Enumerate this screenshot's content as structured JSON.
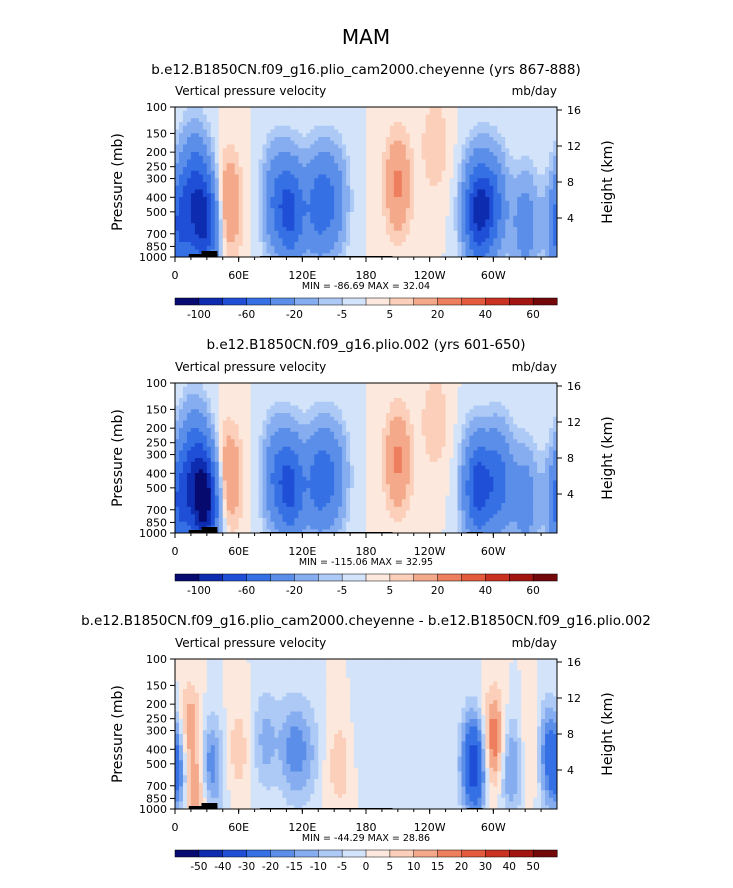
{
  "figure": {
    "season_title": "MAM"
  },
  "chart_data": [
    {
      "type": "heatmap",
      "title": "b.e12.B1850CN.f09_g16.plio_cam2000.cheyenne (yrs 867-888)",
      "left_string": "Vertical pressure velocity",
      "right_string": "mb/day",
      "ylabel": "Pressure (mb)",
      "ylabel_right": "Height (km)",
      "x_ticks": [
        "0",
        "60E",
        "120E",
        "180",
        "120W",
        "60W"
      ],
      "y_ticks": [
        "100",
        "150",
        "200",
        "250",
        "300",
        "400",
        "500",
        "700",
        "850",
        "1000"
      ],
      "y_ticks_right": [
        "16",
        "12",
        "8",
        "4"
      ],
      "stats": "MIN = -86.69   MAX =  32.04",
      "min": -86.69,
      "max": 32.04,
      "colorbar_levels": [
        -120,
        -100,
        -80,
        -60,
        -40,
        -20,
        -10,
        -5,
        0,
        5,
        10,
        20,
        30,
        40,
        50,
        60,
        70
      ],
      "colorbar_labels": [
        "-100",
        "-60",
        "-20",
        "-5",
        "5",
        "20",
        "40",
        "60"
      ],
      "features": [
        {
          "lon": 5,
          "p": 620,
          "w": -60
        },
        {
          "lon": 18,
          "p": 300,
          "w": -40
        },
        {
          "lon": 28,
          "p": 600,
          "w": -80
        },
        {
          "lon": 50,
          "p": 450,
          "w": 22
        },
        {
          "lon": 95,
          "p": 420,
          "w": -35
        },
        {
          "lon": 110,
          "p": 500,
          "w": -60
        },
        {
          "lon": 135,
          "p": 450,
          "w": -45
        },
        {
          "lon": 150,
          "p": 420,
          "w": -30
        },
        {
          "lon": 210,
          "p": 330,
          "w": 22
        },
        {
          "lon": 245,
          "p": 180,
          "w": 10
        },
        {
          "lon": 285,
          "p": 500,
          "w": -80
        },
        {
          "lon": 300,
          "p": 450,
          "w": -45
        },
        {
          "lon": 330,
          "p": 600,
          "w": -30
        }
      ]
    },
    {
      "type": "heatmap",
      "title": "b.e12.B1850CN.f09_g16.plio.002 (yrs 601-650)",
      "left_string": "Vertical pressure velocity",
      "right_string": "mb/day",
      "ylabel": "Pressure (mb)",
      "ylabel_right": "Height (km)",
      "x_ticks": [
        "0",
        "60E",
        "120E",
        "180",
        "120W",
        "60W"
      ],
      "y_ticks": [
        "100",
        "150",
        "200",
        "250",
        "300",
        "400",
        "500",
        "700",
        "850",
        "1000"
      ],
      "y_ticks_right": [
        "16",
        "12",
        "8",
        "4"
      ],
      "stats": "MIN = -115.06   MAX =  32.95",
      "min": -115.06,
      "max": 32.95,
      "colorbar_levels": [
        -120,
        -100,
        -80,
        -60,
        -40,
        -20,
        -10,
        -5,
        0,
        5,
        10,
        20,
        30,
        40,
        50,
        60,
        70
      ],
      "colorbar_labels": [
        "-100",
        "-60",
        "-20",
        "-5",
        "5",
        "20",
        "40",
        "60"
      ],
      "features": [
        {
          "lon": 5,
          "p": 620,
          "w": -60
        },
        {
          "lon": 18,
          "p": 300,
          "w": -40
        },
        {
          "lon": 28,
          "p": 620,
          "w": -110
        },
        {
          "lon": 50,
          "p": 430,
          "w": 22
        },
        {
          "lon": 95,
          "p": 420,
          "w": -35
        },
        {
          "lon": 110,
          "p": 500,
          "w": -60
        },
        {
          "lon": 135,
          "p": 450,
          "w": -45
        },
        {
          "lon": 150,
          "p": 420,
          "w": -30
        },
        {
          "lon": 210,
          "p": 330,
          "w": 22
        },
        {
          "lon": 245,
          "p": 180,
          "w": 10
        },
        {
          "lon": 285,
          "p": 500,
          "w": -70
        },
        {
          "lon": 305,
          "p": 450,
          "w": -50
        },
        {
          "lon": 330,
          "p": 600,
          "w": -30
        }
      ]
    },
    {
      "type": "heatmap",
      "title": "b.e12.B1850CN.f09_g16.plio_cam2000.cheyenne - b.e12.B1850CN.f09_g16.plio.002",
      "left_string": "Vertical pressure velocity",
      "right_string": "mb/day",
      "ylabel": "Pressure (mb)",
      "ylabel_right": "Height (km)",
      "x_ticks": [
        "0",
        "60E",
        "120E",
        "180",
        "120W",
        "60W"
      ],
      "y_ticks": [
        "100",
        "150",
        "200",
        "250",
        "300",
        "400",
        "500",
        "700",
        "850",
        "1000"
      ],
      "y_ticks_right": [
        "16",
        "12",
        "8",
        "4"
      ],
      "stats": "MIN = -44.29   MAX =  28.86",
      "min": -44.29,
      "max": 28.86,
      "colorbar_levels": [
        -60,
        -50,
        -40,
        -30,
        -20,
        -15,
        -10,
        -5,
        0,
        5,
        10,
        15,
        20,
        30,
        40,
        50,
        60
      ],
      "colorbar_labels": [
        "-50",
        "-40",
        "-30",
        "-20",
        "-15",
        "-10",
        "-5",
        "0",
        "5",
        "10",
        "15",
        "20",
        "30",
        "40",
        "50"
      ],
      "features": [
        {
          "lon": 4,
          "p": 500,
          "w": -30
        },
        {
          "lon": 12,
          "p": 350,
          "w": 25
        },
        {
          "lon": 22,
          "p": 800,
          "w": 20
        },
        {
          "lon": 32,
          "p": 550,
          "w": -25
        },
        {
          "lon": 60,
          "p": 400,
          "w": 8
        },
        {
          "lon": 85,
          "p": 350,
          "w": -12
        },
        {
          "lon": 110,
          "p": 400,
          "w": -15
        },
        {
          "lon": 125,
          "p": 420,
          "w": -10
        },
        {
          "lon": 155,
          "p": 500,
          "w": 8
        },
        {
          "lon": 180,
          "p": 300,
          "w": -5
        },
        {
          "lon": 240,
          "p": 500,
          "w": -5
        },
        {
          "lon": 283,
          "p": 500,
          "w": -40
        },
        {
          "lon": 300,
          "p": 380,
          "w": 28
        },
        {
          "lon": 315,
          "p": 500,
          "w": -20
        },
        {
          "lon": 338,
          "p": 400,
          "w": 12
        },
        {
          "lon": 350,
          "p": 400,
          "w": -20
        }
      ]
    }
  ],
  "colors": {
    "palette": [
      "#070a6e",
      "#0d2cb0",
      "#1f4fd6",
      "#3570e4",
      "#5a8ee8",
      "#86adf0",
      "#adc9f5",
      "#d2e3fa",
      "#fce8dc",
      "#fbcfb9",
      "#f5a98b",
      "#ee7f5e",
      "#e35a3c",
      "#c93221",
      "#a31510",
      "#73080a"
    ]
  }
}
